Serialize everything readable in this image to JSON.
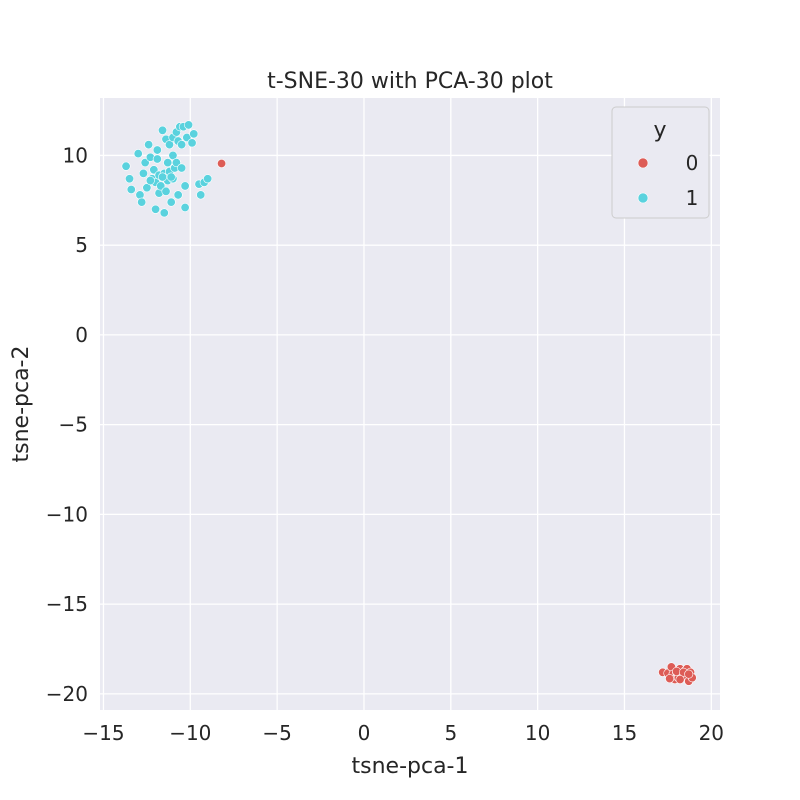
{
  "chart_data": {
    "type": "scatter",
    "title": "t-SNE-30 with PCA-30 plot",
    "xlabel": "tsne-pca-1",
    "ylabel": "tsne-pca-2",
    "xlim": [
      -15.2,
      20.5
    ],
    "ylim": [
      -20.9,
      13.2
    ],
    "xticks": [
      -15,
      -10,
      -5,
      0,
      5,
      10,
      15,
      20
    ],
    "yticks": [
      -20,
      -15,
      -10,
      -5,
      0,
      5,
      10
    ],
    "grid": true,
    "legend": {
      "title": "y",
      "placement": "top-right"
    },
    "series": [
      {
        "name": "0",
        "color": "#dd5c56",
        "points": [
          [
            -8.2,
            9.55
          ],
          [
            17.2,
            -18.8
          ],
          [
            17.5,
            -18.85
          ],
          [
            17.7,
            -18.5
          ],
          [
            17.8,
            -18.9
          ],
          [
            17.9,
            -19.2
          ],
          [
            18.0,
            -18.8
          ],
          [
            18.1,
            -19.1
          ],
          [
            18.2,
            -18.6
          ],
          [
            18.3,
            -18.9
          ],
          [
            18.4,
            -19.0
          ],
          [
            18.5,
            -18.7
          ],
          [
            18.6,
            -18.6
          ],
          [
            18.7,
            -19.3
          ],
          [
            18.8,
            -18.8
          ],
          [
            18.9,
            -19.1
          ],
          [
            18.0,
            -18.75
          ],
          [
            18.4,
            -18.8
          ],
          [
            17.6,
            -19.15
          ],
          [
            18.7,
            -18.9
          ],
          [
            18.2,
            -19.2
          ]
        ]
      },
      {
        "name": "1",
        "color": "#5ad2de",
        "points": [
          [
            -13.7,
            9.4
          ],
          [
            -13.5,
            8.7
          ],
          [
            -13.4,
            8.1
          ],
          [
            -13.0,
            10.1
          ],
          [
            -12.9,
            7.8
          ],
          [
            -12.8,
            7.4
          ],
          [
            -12.7,
            9.0
          ],
          [
            -12.6,
            9.6
          ],
          [
            -12.5,
            8.2
          ],
          [
            -12.4,
            10.6
          ],
          [
            -12.3,
            9.9
          ],
          [
            -12.2,
            8.7
          ],
          [
            -12.1,
            9.2
          ],
          [
            -12.0,
            8.5
          ],
          [
            -12.0,
            7.0
          ],
          [
            -11.9,
            9.8
          ],
          [
            -11.8,
            8.9
          ],
          [
            -11.8,
            7.9
          ],
          [
            -11.7,
            8.3
          ],
          [
            -11.6,
            11.4
          ],
          [
            -11.5,
            9.0
          ],
          [
            -11.5,
            6.8
          ],
          [
            -11.4,
            10.9
          ],
          [
            -11.4,
            8.0
          ],
          [
            -11.3,
            9.6
          ],
          [
            -11.3,
            8.6
          ],
          [
            -11.2,
            10.6
          ],
          [
            -11.2,
            9.1
          ],
          [
            -11.1,
            7.4
          ],
          [
            -11.0,
            11.0
          ],
          [
            -11.0,
            10.0
          ],
          [
            -11.0,
            8.7
          ],
          [
            -10.9,
            9.3
          ],
          [
            -10.8,
            11.3
          ],
          [
            -10.8,
            9.6
          ],
          [
            -10.7,
            10.8
          ],
          [
            -10.7,
            7.8
          ],
          [
            -10.6,
            11.6
          ],
          [
            -10.5,
            10.6
          ],
          [
            -10.5,
            9.3
          ],
          [
            -10.4,
            11.6
          ],
          [
            -10.3,
            8.3
          ],
          [
            -10.3,
            7.1
          ],
          [
            -10.2,
            11.0
          ],
          [
            -10.1,
            11.7
          ],
          [
            -9.9,
            10.7
          ],
          [
            -9.8,
            11.2
          ],
          [
            -9.5,
            8.4
          ],
          [
            -9.4,
            7.8
          ],
          [
            -9.2,
            8.5
          ],
          [
            -9.0,
            8.7
          ],
          [
            -11.6,
            8.8
          ],
          [
            -12.3,
            8.6
          ],
          [
            -11.9,
            10.3
          ],
          [
            -11.1,
            8.8
          ]
        ]
      }
    ]
  }
}
